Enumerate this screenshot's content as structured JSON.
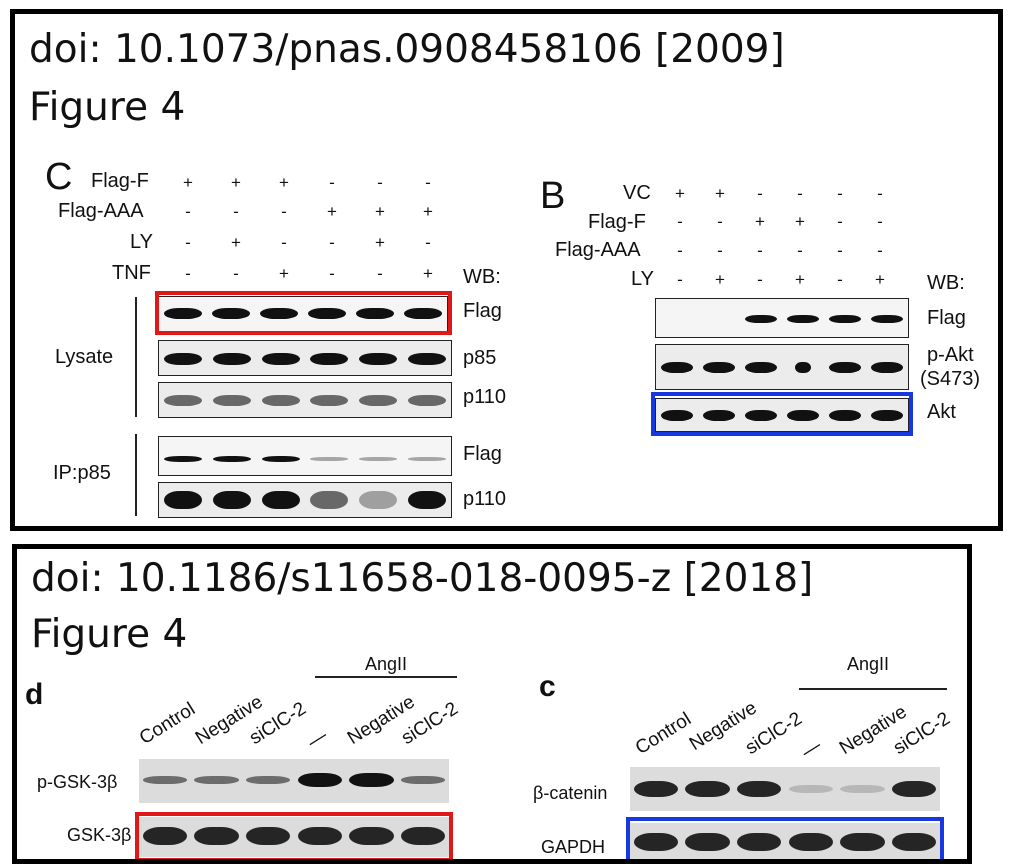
{
  "panels": [
    {
      "doi": "doi: 10.1073/pnas.0908458106 [2009]",
      "figure": "Figure 4",
      "left_blot": {
        "letter": "C",
        "rows": [
          {
            "label": "Flag-F",
            "signs": [
              "+",
              "+",
              "+",
              "-",
              "-",
              "-"
            ]
          },
          {
            "label": "Flag-AAA",
            "signs": [
              "-",
              "-",
              "-",
              "+",
              "+",
              "+"
            ]
          },
          {
            "label": "LY",
            "signs": [
              "-",
              "+",
              "-",
              "-",
              "+",
              "-"
            ]
          },
          {
            "label": "TNF",
            "signs": [
              "-",
              "-",
              "+",
              "-",
              "-",
              "+"
            ]
          }
        ],
        "wb": "WB:",
        "groups": [
          "Lysate",
          "IP:p85"
        ],
        "bands": [
          "Flag",
          "p85",
          "p110",
          "Flag",
          "p110"
        ]
      },
      "right_blot": {
        "letter": "B",
        "rows": [
          {
            "label": "VC",
            "signs": [
              "+",
              "+",
              "-",
              "-",
              "-",
              "-"
            ]
          },
          {
            "label": "Flag-F",
            "signs": [
              "-",
              "-",
              "+",
              "+",
              "-",
              "-"
            ]
          },
          {
            "label": "Flag-AAA",
            "signs": [
              "-",
              "-",
              "-",
              "-",
              "-",
              "-"
            ]
          },
          {
            "label": "LY",
            "signs": [
              "-",
              "+",
              "-",
              "+",
              "-",
              "+"
            ]
          }
        ],
        "wb": "WB:",
        "bands": [
          "Flag",
          "p-Akt",
          "(S473)",
          "Akt"
        ]
      }
    },
    {
      "doi": "doi: 10.1186/s11658-018-0095-z [2018]",
      "figure": "Figure 4",
      "left_blot": {
        "letter": "d",
        "group": "AngII",
        "lanes": [
          "Control",
          "Negative",
          "siClC-2",
          "—",
          "Negative",
          "siClC-2"
        ],
        "bands": [
          "p-GSK-3β",
          "GSK-3β"
        ]
      },
      "right_blot": {
        "letter": "c",
        "group": "AngII",
        "lanes": [
          "Control",
          "Negative",
          "siClC-2",
          "—",
          "Negative",
          "siClC-2"
        ],
        "bands": [
          "β-catenin",
          "GAPDH"
        ]
      }
    }
  ],
  "colors": {
    "highlight_red": "#e01818",
    "highlight_blue": "#1638e0",
    "border": "#000000"
  }
}
